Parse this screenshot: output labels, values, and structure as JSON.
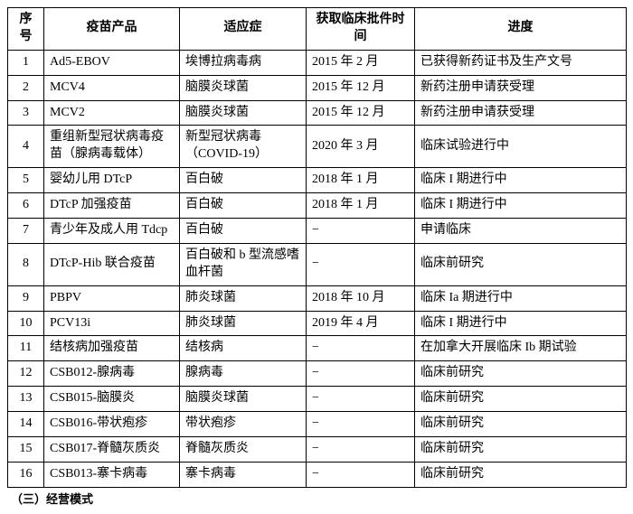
{
  "table": {
    "columns": [
      "序号",
      "疫苗产品",
      "适应症",
      "获取临床批件时间",
      "进度"
    ],
    "col_align": [
      "center",
      "left",
      "left",
      "left",
      "left"
    ],
    "rows": [
      [
        "1",
        "Ad5-EBOV",
        "埃博拉病毒病",
        "2015 年 2 月",
        "已获得新药证书及生产文号"
      ],
      [
        "2",
        "MCV4",
        "脑膜炎球菌",
        "2015 年 12 月",
        "新药注册申请获受理"
      ],
      [
        "3",
        "MCV2",
        "脑膜炎球菌",
        "2015 年 12 月",
        "新药注册申请获受理"
      ],
      [
        "4",
        "重组新型冠状病毒疫苗（腺病毒载体）",
        "新型冠状病毒（COVID-19）",
        "2020 年 3 月",
        "临床试验进行中"
      ],
      [
        "5",
        "婴幼儿用 DTcP",
        "百白破",
        "2018 年 1 月",
        "临床 I 期进行中"
      ],
      [
        "6",
        "DTcP 加强疫苗",
        "百白破",
        "2018 年 1 月",
        "临床 I 期进行中"
      ],
      [
        "7",
        "青少年及成人用 Tdcp",
        "百白破",
        "−",
        "申请临床"
      ],
      [
        "8",
        "DTcP-Hib 联合疫苗",
        "百白破和 b 型流感嗜血杆菌",
        "−",
        "临床前研究"
      ],
      [
        "9",
        "PBPV",
        "肺炎球菌",
        "2018 年 10 月",
        "临床 Ia 期进行中"
      ],
      [
        "10",
        "PCV13i",
        "肺炎球菌",
        "2019 年 4 月",
        "临床 I 期进行中"
      ],
      [
        "11",
        "结核病加强疫苗",
        "结核病",
        "−",
        "在加拿大开展临床 Ib 期试验"
      ],
      [
        "12",
        "CSB012-腺病毒",
        "腺病毒",
        "−",
        "临床前研究"
      ],
      [
        "13",
        "CSB015-脑膜炎",
        "脑膜炎球菌",
        "−",
        "临床前研究"
      ],
      [
        "14",
        "CSB016-带状疱疹",
        "带状疱疹",
        "−",
        "临床前研究"
      ],
      [
        "15",
        "CSB017-脊髓灰质炎",
        "脊髓灰质炎",
        "−",
        "临床前研究"
      ],
      [
        "16",
        "CSB013-寨卡病毒",
        "寨卡病毒",
        "−",
        "临床前研究"
      ]
    ]
  },
  "footer": "（三）经营模式"
}
